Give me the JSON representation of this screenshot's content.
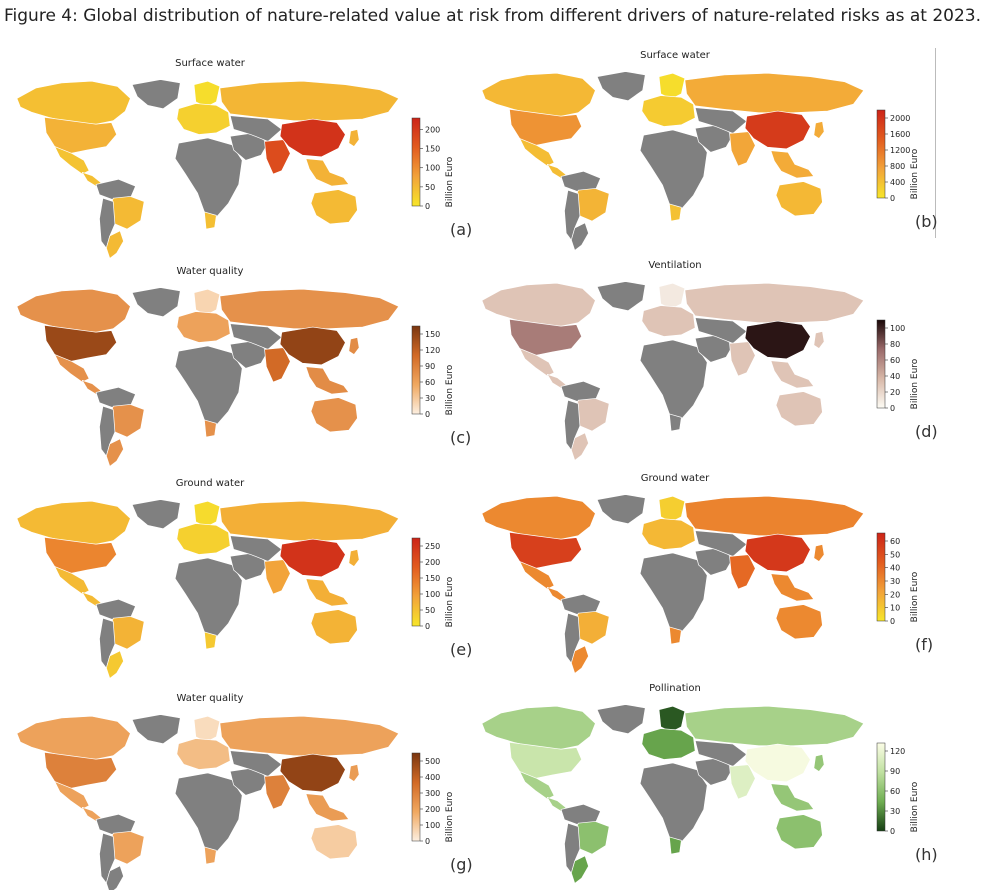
{
  "caption": "Figure 4: Global distribution of nature-related value at risk from different drivers of nature-related risks as at 2023.",
  "chart_data": [
    {
      "type": "heatmap",
      "panel_label": "(a)",
      "title": "Surface water",
      "colorbar_label": "Billion Euro",
      "colormap": [
        "#f7e62a",
        "#f2a33a",
        "#e25c1f",
        "#cc2418"
      ],
      "ticks": [
        "200",
        "150",
        "100",
        "50",
        "0"
      ],
      "cbar_range": [
        0,
        230
      ],
      "regions": {
        "north_america": 45,
        "usa": 60,
        "mexico": 40,
        "central_america": 45,
        "south_america_north": 0,
        "brazil": 50,
        "south_america_south": 0,
        "argentina": 50,
        "greenland": 0,
        "europe": 25,
        "scandinavia": 10,
        "russia": 55,
        "africa": 0,
        "south_africa": 45,
        "middle_east": 0,
        "central_asia": 0,
        "india": 175,
        "china": 210,
        "southeast_asia": 60,
        "japan": 60,
        "australia": 50
      }
    },
    {
      "type": "heatmap",
      "panel_label": "(b)",
      "title": "Surface water",
      "colorbar_label": "Billion Euro",
      "colormap": [
        "#f7e62a",
        "#f2a33a",
        "#e25c1f",
        "#cc2418"
      ],
      "ticks": [
        "2000",
        "1600",
        "1200",
        "800",
        "400",
        "0"
      ],
      "cbar_range": [
        0,
        2200
      ],
      "regions": {
        "north_america": 500,
        "usa": 900,
        "mexico": 450,
        "central_america": 450,
        "south_america_north": 0,
        "brazil": 550,
        "south_america_south": 0,
        "argentina": 0,
        "greenland": 0,
        "europe": 300,
        "scandinavia": 100,
        "russia": 650,
        "africa": 0,
        "south_africa": 400,
        "middle_east": 0,
        "central_asia": 0,
        "india": 700,
        "china": 1900,
        "southeast_asia": 650,
        "japan": 650,
        "australia": 500
      }
    },
    {
      "type": "heatmap",
      "panel_label": "(c)",
      "title": "Water quality",
      "colorbar_label": "Billion Euro",
      "colormap": [
        "#fcefe0",
        "#f0a860",
        "#d26a26",
        "#7a3610"
      ],
      "ticks": [
        "150",
        "120",
        "90",
        "60",
        "30",
        "0"
      ],
      "cbar_range": [
        0,
        165
      ],
      "regions": {
        "north_america": 75,
        "usa": 145,
        "mexico": 75,
        "central_america": 75,
        "south_america_north": 0,
        "brazil": 75,
        "south_america_south": 0,
        "argentina": 75,
        "greenland": 0,
        "europe": 60,
        "scandinavia": 20,
        "russia": 75,
        "africa": 0,
        "south_africa": 75,
        "middle_east": 0,
        "central_asia": 0,
        "india": 110,
        "china": 150,
        "southeast_asia": 80,
        "japan": 80,
        "australia": 75
      }
    },
    {
      "type": "heatmap",
      "panel_label": "(d)",
      "title": "Ventilation",
      "colorbar_label": "Billion Euro",
      "colormap": [
        "#fdfcf5",
        "#d8b8a8",
        "#9a6a6a",
        "#1a0808"
      ],
      "ticks": [
        "100",
        "80",
        "60",
        "40",
        "20",
        "0"
      ],
      "cbar_range": [
        0,
        110
      ],
      "regions": {
        "north_america": 30,
        "usa": 65,
        "mexico": 30,
        "central_america": 30,
        "south_america_north": 0,
        "brazil": 30,
        "south_america_south": 0,
        "argentina": 30,
        "greenland": 0,
        "europe": 30,
        "scandinavia": 10,
        "russia": 30,
        "africa": 0,
        "south_africa": 0,
        "middle_east": 0,
        "central_asia": 0,
        "india": 30,
        "china": 105,
        "southeast_asia": 30,
        "japan": 30,
        "australia": 30
      }
    },
    {
      "type": "heatmap",
      "panel_label": "(e)",
      "title": "Ground water",
      "colorbar_label": "Billion Euro",
      "colormap": [
        "#f7e62a",
        "#f2a33a",
        "#e25c1f",
        "#cc2418"
      ],
      "ticks": [
        "250",
        "200",
        "150",
        "100",
        "50",
        "0"
      ],
      "cbar_range": [
        0,
        275
      ],
      "regions": {
        "north_america": 60,
        "usa": 130,
        "mexico": 60,
        "central_america": 60,
        "south_america_north": 0,
        "brazil": 70,
        "south_america_south": 0,
        "argentina": 40,
        "greenland": 0,
        "europe": 30,
        "scandinavia": 15,
        "russia": 75,
        "africa": 0,
        "south_africa": 40,
        "middle_east": 0,
        "central_asia": 0,
        "india": 90,
        "china": 250,
        "southeast_asia": 75,
        "japan": 75,
        "australia": 70
      }
    },
    {
      "type": "heatmap",
      "panel_label": "(f)",
      "title": "Ground water",
      "colorbar_label": "Billion Euro",
      "colormap": [
        "#f7e62a",
        "#f2a33a",
        "#e25c1f",
        "#cc2418"
      ],
      "ticks": [
        "60",
        "50",
        "40",
        "30",
        "20",
        "10",
        "0"
      ],
      "cbar_range": [
        0,
        66
      ],
      "regions": {
        "north_america": 30,
        "usa": 55,
        "mexico": 30,
        "central_america": 30,
        "south_america_north": 0,
        "brazil": 18,
        "south_america_south": 0,
        "argentina": 30,
        "greenland": 0,
        "europe": 15,
        "scandinavia": 8,
        "russia": 32,
        "africa": 0,
        "south_africa": 30,
        "middle_east": 0,
        "central_asia": 0,
        "india": 40,
        "china": 58,
        "southeast_asia": 30,
        "japan": 30,
        "australia": 30
      }
    },
    {
      "type": "heatmap",
      "panel_label": "(g)",
      "title": "Water quality",
      "colorbar_label": "Billion Euro",
      "colormap": [
        "#fcefe0",
        "#f0a860",
        "#d26a26",
        "#7a3610"
      ],
      "ticks": [
        "500",
        "400",
        "300",
        "200",
        "100",
        "0"
      ],
      "cbar_range": [
        0,
        550
      ],
      "regions": {
        "north_america": 200,
        "usa": 300,
        "mexico": 200,
        "central_america": 200,
        "south_america_north": 0,
        "brazil": 200,
        "south_america_south": 0,
        "argentina": 0,
        "greenland": 0,
        "europe": 130,
        "scandinavia": 50,
        "russia": 200,
        "africa": 0,
        "south_africa": 200,
        "middle_east": 0,
        "central_asia": 0,
        "india": 300,
        "china": 500,
        "southeast_asia": 220,
        "japan": 220,
        "australia": 90
      }
    },
    {
      "type": "heatmap",
      "panel_label": "(h)",
      "title": "Pollination",
      "colorbar_label": "Billion Euro",
      "colormap": [
        "#163f14",
        "#6fae52",
        "#bfe0a0",
        "#fbfde6"
      ],
      "ticks": [
        "120",
        "90",
        "60",
        "30",
        "0"
      ],
      "cbar_range": [
        0,
        132
      ],
      "regions": {
        "north_america": 75,
        "usa": 95,
        "mexico": 75,
        "central_america": 75,
        "south_america_north": 0,
        "brazil": 60,
        "south_america_south": 0,
        "argentina": 40,
        "greenland": 0,
        "europe": 40,
        "scandinavia": 10,
        "russia": 75,
        "africa": 0,
        "south_africa": 40,
        "middle_east": 0,
        "central_asia": 0,
        "india": 110,
        "china": 128,
        "southeast_asia": 65,
        "japan": 65,
        "australia": 60
      }
    }
  ]
}
